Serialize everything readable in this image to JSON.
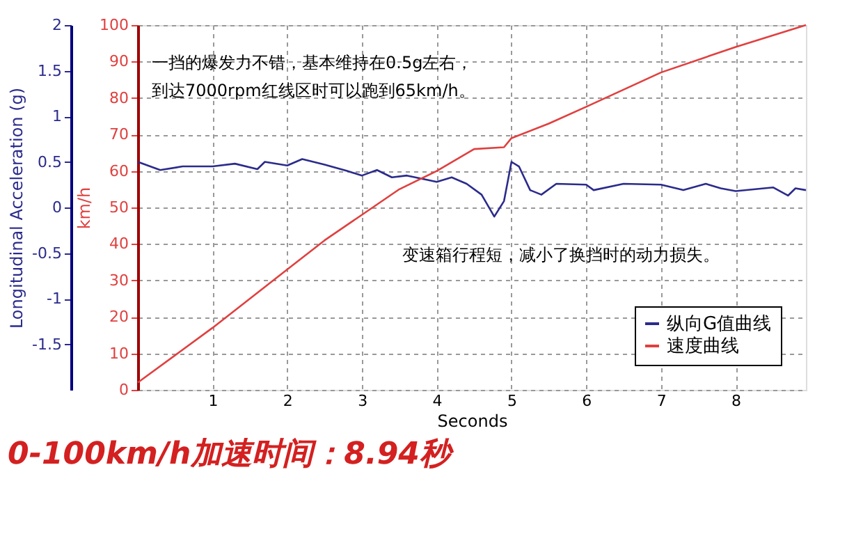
{
  "chart_data": {
    "type": "line",
    "title": "0-100km/h加速时间：8.94秒",
    "xlabel": "Seconds",
    "ylabel": "km/h",
    "y2label": "Longitudinal Acceleration (g)",
    "xlim": [
      0,
      8.94
    ],
    "xticks": [
      1,
      2,
      3,
      4,
      5,
      6,
      7,
      8
    ],
    "ylim": [
      0,
      100
    ],
    "yticks": [
      0,
      10,
      20,
      30,
      40,
      50,
      60,
      70,
      80,
      90,
      100
    ],
    "y2lim": [
      -2,
      2
    ],
    "y2ticks": [
      -1.5,
      -1,
      -0.5,
      0,
      0.5,
      1,
      1.5,
      2
    ],
    "grid": true,
    "legend": "bottom right",
    "annotations": [
      "一挡的爆发力不错，基本维持在0.5g左右，",
      "到达7000rpm红线区时可以跑到65km/h。",
      "变速箱行程短，减小了换挡时的动力损失。"
    ],
    "series": [
      {
        "name": "纵向G值曲线",
        "color": "#2b2b8c",
        "axis": "y2",
        "x": [
          0,
          0.3,
          0.6,
          1.0,
          1.3,
          1.6,
          1.7,
          2.0,
          2.2,
          2.5,
          2.8,
          3.0,
          3.2,
          3.4,
          3.6,
          4.0,
          4.2,
          4.4,
          4.6,
          4.77,
          4.9,
          5.0,
          5.1,
          5.25,
          5.4,
          5.6,
          6.0,
          6.1,
          6.5,
          7.0,
          7.3,
          7.6,
          7.8,
          8.0,
          8.5,
          8.7,
          8.8,
          8.94
        ],
        "values": [
          0.5,
          0.41,
          0.45,
          0.45,
          0.48,
          0.42,
          0.5,
          0.46,
          0.53,
          0.47,
          0.4,
          0.35,
          0.41,
          0.33,
          0.35,
          0.28,
          0.33,
          0.26,
          0.14,
          -0.1,
          0.07,
          0.5,
          0.45,
          0.19,
          0.14,
          0.26,
          0.25,
          0.19,
          0.26,
          0.25,
          0.19,
          0.26,
          0.21,
          0.18,
          0.22,
          0.13,
          0.21,
          0.19
        ]
      },
      {
        "name": "速度曲线",
        "color": "#e0403f",
        "x": [
          0,
          1,
          2,
          2.5,
          3,
          3.5,
          4,
          4.5,
          4.9,
          5.0,
          5.5,
          6,
          7,
          8,
          8.94
        ],
        "values": [
          2,
          17,
          33,
          41,
          48,
          55,
          60,
          66,
          66.5,
          69,
          73,
          77.6,
          87,
          94,
          100
        ]
      }
    ]
  }
}
